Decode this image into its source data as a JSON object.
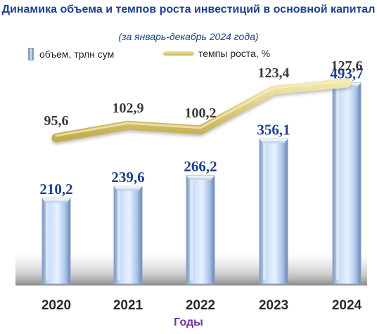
{
  "chart_data": {
    "type": "bar",
    "title": "Динамика объема и темпов роста инвестиций в основной капитал",
    "subtitle": "(за январь-декабрь 2024 года)",
    "xlabel": "Годы",
    "categories": [
      "2020",
      "2021",
      "2022",
      "2023",
      "2024"
    ],
    "series": [
      {
        "name": "объем, трлн сум",
        "type": "bar",
        "values": [
          210.2,
          239.6,
          266.2,
          356.1,
          493.7
        ],
        "labels": [
          "210,2",
          "239,6",
          "266,2",
          "356,1",
          "493,7"
        ],
        "color": "#9fc3f5"
      },
      {
        "name": "темпы роста, %",
        "type": "line",
        "values": [
          95.6,
          102.9,
          100.2,
          123.4,
          127.6
        ],
        "labels": [
          "95,6",
          "102,9",
          "100,2",
          "123,4",
          "127,6"
        ],
        "color": "#d4c36a"
      }
    ],
    "legend_position": "top",
    "grid": false
  },
  "colors": {
    "title": "#1f3f8f",
    "value_labels": "#1f3f8f",
    "line_labels": "#3a3a3a",
    "axis_title": "#7030a0"
  }
}
